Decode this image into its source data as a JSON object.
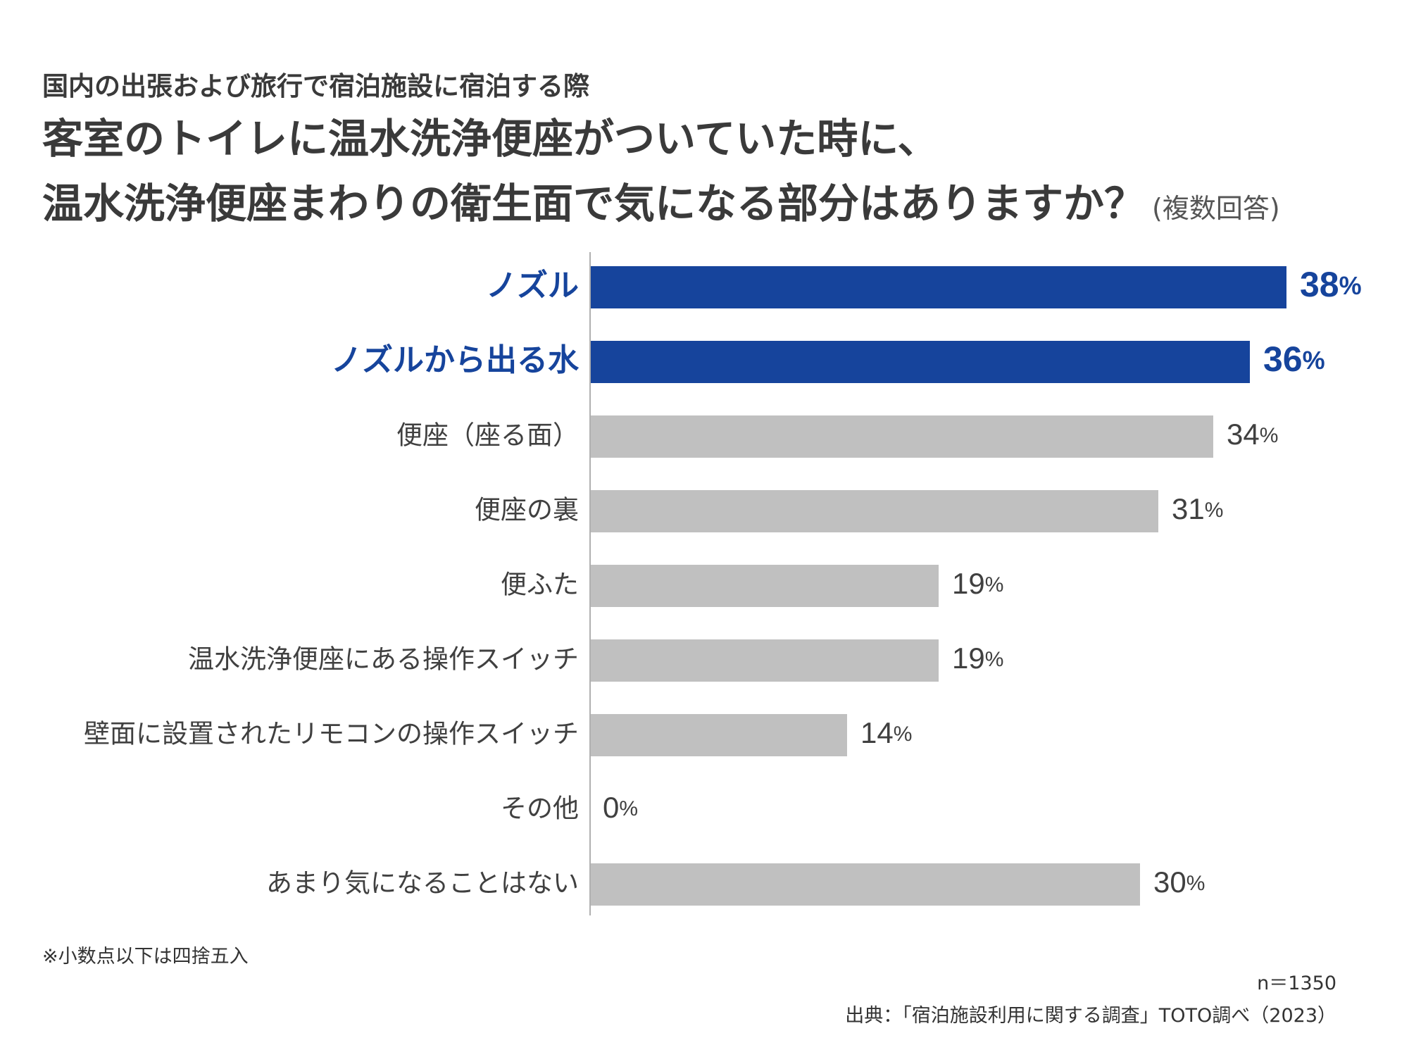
{
  "header": {
    "subtitle": "国内の出張および旅行で宿泊施設に宿泊する際",
    "title_line1": "客室のトイレに温水洗浄便座がついていた時に、",
    "title_line2": "温水洗浄便座まわりの衛生面で気になる部分はありますか？",
    "title_note": "(複数回答)"
  },
  "chart_data": {
    "type": "bar",
    "orientation": "horizontal",
    "categories": [
      "ノズル",
      "ノズルから出る水",
      "便座（座る面）",
      "便座の裏",
      "便ふた",
      "温水洗浄便座にある操作スイッチ",
      "壁面に設置されたリモコンの操作スイッチ",
      "その他",
      "あまり気になることはない"
    ],
    "values": [
      38,
      36,
      34,
      31,
      19,
      19,
      14,
      0,
      30
    ],
    "value_suffix": "%",
    "highlight": [
      true,
      true,
      false,
      false,
      false,
      false,
      false,
      false,
      false
    ],
    "colors": {
      "highlight": "#16449c",
      "normal": "#c0c0c0",
      "axis": "#b0b0b0"
    },
    "xlim": [
      0,
      40
    ],
    "grid": false,
    "legend": "none"
  },
  "footer": {
    "note": "※小数点以下は四捨五入",
    "n": "n＝1350",
    "source": "出典：「宿泊施設利用に関する調査」TOTO調べ（2023）"
  }
}
